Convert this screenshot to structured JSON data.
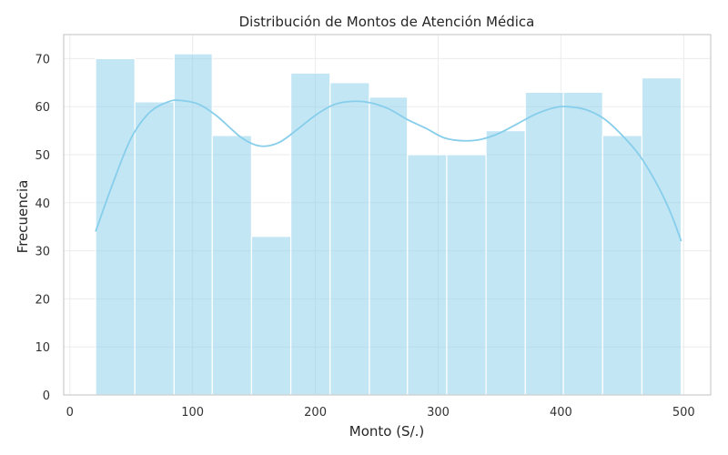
{
  "chart_data": {
    "type": "bar",
    "subtype": "histogram",
    "title": "Distribución de Montos de Atención Médica",
    "xlabel": "Monto (S/.)",
    "ylabel": "Frecuencia",
    "xlim": [
      -5,
      522
    ],
    "ylim": [
      0,
      75
    ],
    "x_ticks": [
      0,
      100,
      200,
      300,
      400,
      500
    ],
    "y_ticks": [
      0,
      10,
      20,
      30,
      40,
      50,
      60,
      70
    ],
    "grid": true,
    "bin_edges": [
      21,
      53,
      85,
      116,
      148,
      180,
      212,
      244,
      275,
      307,
      339,
      371,
      402,
      434,
      466,
      498
    ],
    "values": [
      70,
      61,
      71,
      54,
      33,
      67,
      65,
      62,
      50,
      50,
      55,
      63,
      63,
      54,
      66
    ],
    "kde": {
      "x": [
        21,
        35,
        50,
        65,
        80,
        90,
        105,
        120,
        140,
        155,
        170,
        185,
        200,
        215,
        230,
        245,
        260,
        275,
        290,
        305,
        320,
        335,
        350,
        365,
        380,
        395,
        405,
        420,
        435,
        450,
        465,
        480,
        490,
        498
      ],
      "y": [
        34,
        44,
        53.5,
        58.8,
        61,
        61.3,
        60.5,
        58,
        53.5,
        51.8,
        52.5,
        55.2,
        58.2,
        60.4,
        61.1,
        60.8,
        59.5,
        57.3,
        55.5,
        53.5,
        52.9,
        53.2,
        54.5,
        56.5,
        58.5,
        59.8,
        60,
        59.4,
        57.5,
        54,
        49.5,
        43,
        37.5,
        32
      ]
    },
    "colors": {
      "bars": "#87ceeb",
      "kde": "#87ceeb"
    }
  }
}
